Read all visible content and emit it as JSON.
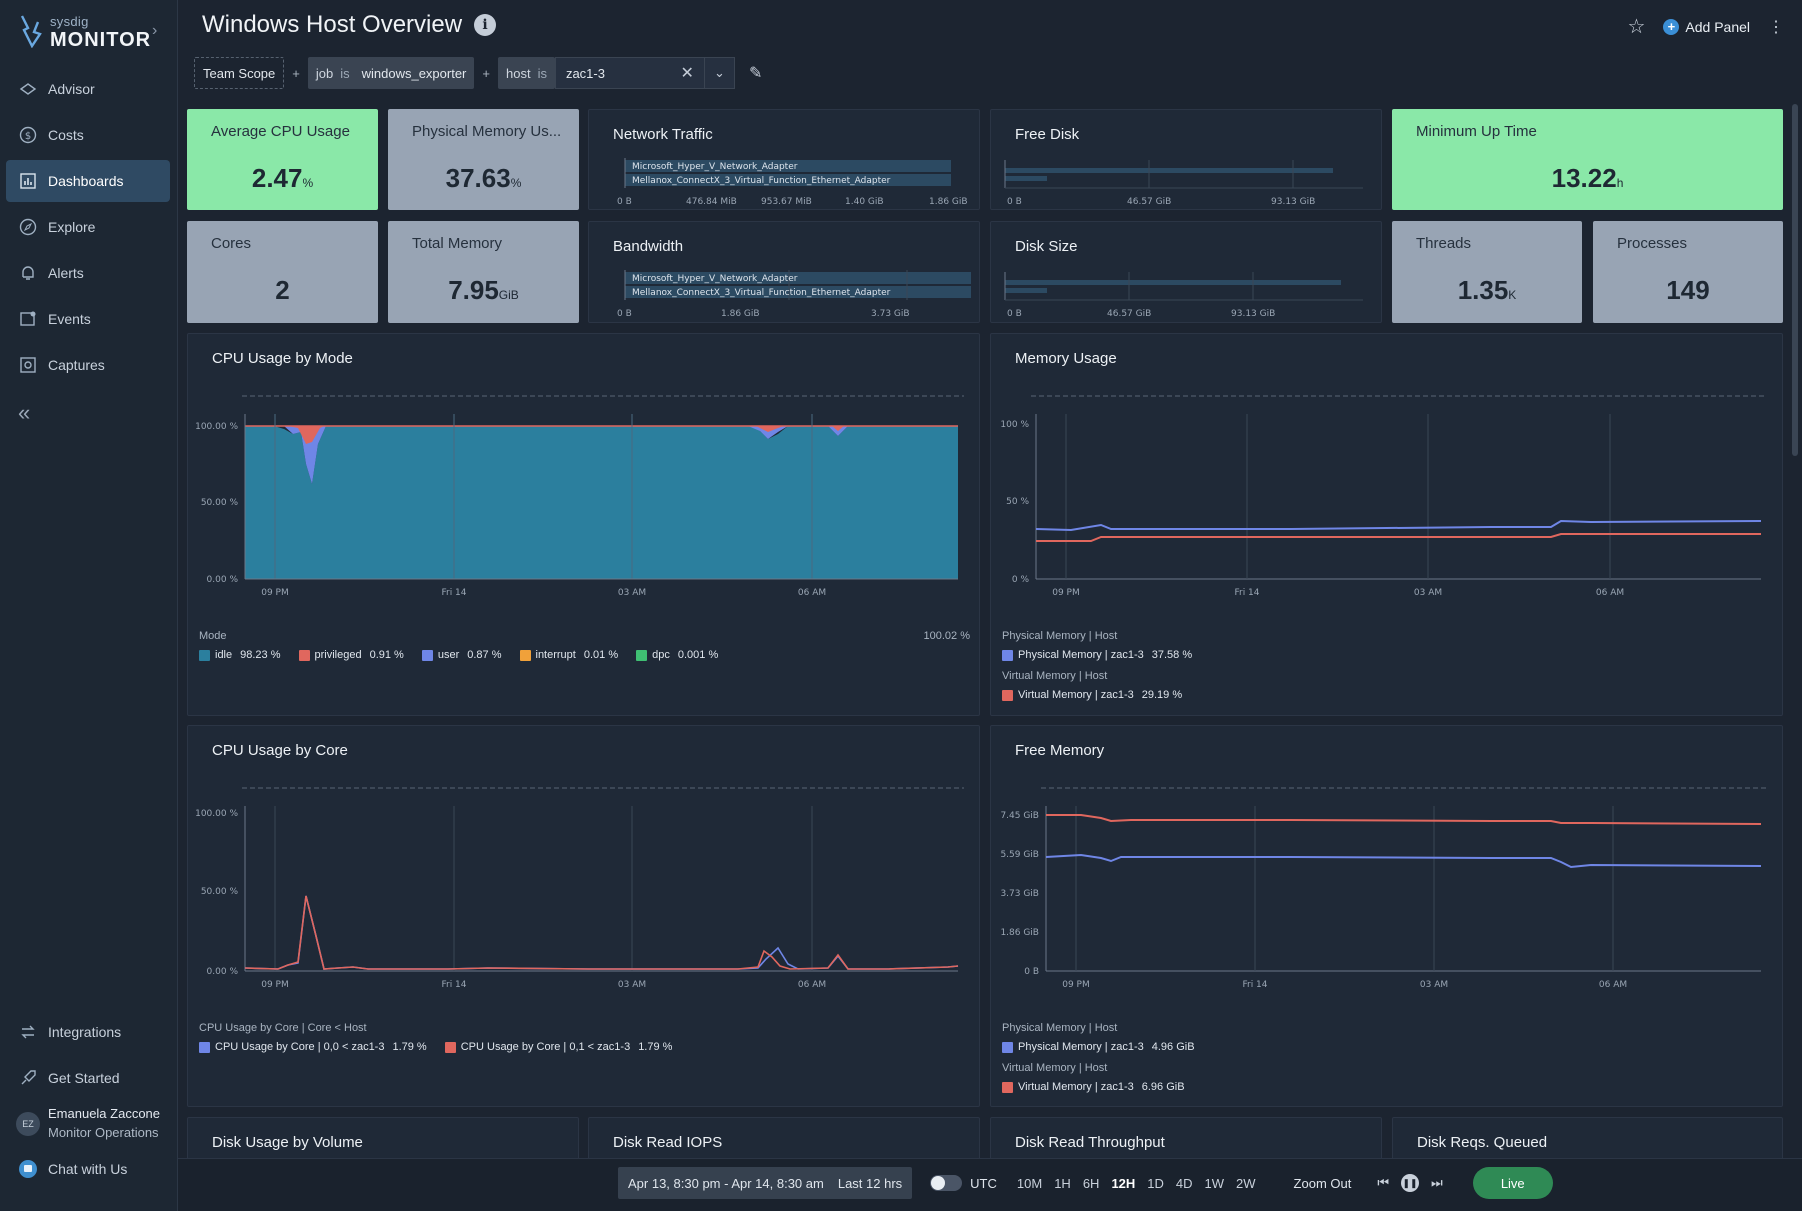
{
  "app": {
    "brand_small": "sysdig",
    "brand_big": "MONITOR"
  },
  "sidebar": {
    "items": [
      {
        "label": "Advisor",
        "icon": "advisor-icon"
      },
      {
        "label": "Costs",
        "icon": "costs-icon"
      },
      {
        "label": "Dashboards",
        "icon": "dashboards-icon",
        "active": true
      },
      {
        "label": "Explore",
        "icon": "explore-icon"
      },
      {
        "label": "Alerts",
        "icon": "alerts-icon"
      },
      {
        "label": "Events",
        "icon": "events-icon"
      },
      {
        "label": "Captures",
        "icon": "captures-icon"
      }
    ],
    "bottom_items": [
      {
        "label": "Integrations",
        "icon": "integrations-icon"
      },
      {
        "label": "Get Started",
        "icon": "get-started-icon"
      }
    ],
    "user": {
      "initials": "EZ",
      "name": "Emanuela Zaccone",
      "role": "Monitor Operations"
    },
    "chat": "Chat with Us"
  },
  "header": {
    "title": "Windows Host Overview",
    "add_panel": "Add Panel"
  },
  "filters": {
    "scope": "Team Scope",
    "plus": "+",
    "f1": {
      "key": "job",
      "op": "is",
      "value": "windows_exporter"
    },
    "f2": {
      "key": "host",
      "op": "is",
      "value": "zac1-3"
    }
  },
  "tiles": {
    "avg_cpu": {
      "label": "Average CPU Usage",
      "value": "2.47",
      "unit": "%"
    },
    "phys_mem": {
      "label": "Physical Memory Us...",
      "value": "37.63",
      "unit": "%"
    },
    "min_up": {
      "label": "Minimum Up Time",
      "value": "13.22",
      "unit": "h"
    },
    "cores": {
      "label": "Cores",
      "value": "2",
      "unit": ""
    },
    "total_mem": {
      "label": "Total Memory",
      "value": "7.95",
      "unit": "GiB"
    },
    "threads": {
      "label": "Threads",
      "value": "1.35",
      "unit": "K"
    },
    "processes": {
      "label": "Processes",
      "value": "149",
      "unit": ""
    }
  },
  "bar_panels": {
    "network": {
      "title": "Network Traffic",
      "bars": [
        "Microsoft_Hyper_V_Network_Adapter",
        "Mellanox_ConnectX_3_Virtual_Function_Ethernet_Adapter"
      ],
      "ticks": [
        "0 B",
        "476.84 MiB",
        "953.67 MiB",
        "1.40 GiB",
        "1.86 GiB"
      ]
    },
    "bandwidth": {
      "title": "Bandwidth",
      "bars": [
        "Microsoft_Hyper_V_Network_Adapter",
        "Mellanox_ConnectX_3_Virtual_Function_Ethernet_Adapter"
      ],
      "ticks": [
        "0 B",
        "1.86 GiB",
        "3.73 GiB"
      ]
    },
    "free_disk": {
      "title": "Free Disk",
      "ticks": [
        "0 B",
        "46.57 GiB",
        "93.13 GiB"
      ]
    },
    "disk_size": {
      "title": "Disk Size",
      "ticks": [
        "0 B",
        "46.57 GiB",
        "93.13 GiB"
      ]
    }
  },
  "charts": {
    "cpu_mode": {
      "title": "CPU Usage by Mode",
      "group": "Mode",
      "total": "100.02 %",
      "legend": [
        {
          "name": "idle",
          "value": "98.23 %",
          "color": "#2b7f9e"
        },
        {
          "name": "privileged",
          "value": "0.91 %",
          "color": "#e0675e"
        },
        {
          "name": "user",
          "value": "0.87 %",
          "color": "#6f86e6"
        },
        {
          "name": "interrupt",
          "value": "0.01 %",
          "color": "#f0a13a"
        },
        {
          "name": "dpc",
          "value": "0.001 %",
          "color": "#3fbf73"
        }
      ]
    },
    "memory_usage": {
      "title": "Memory Usage",
      "g1": "Physical Memory | Host",
      "l1": "Physical Memory | zac1-3",
      "v1": "37.58 %",
      "g2": "Virtual Memory | Host",
      "l2": "Virtual Memory | zac1-3",
      "v2": "29.19 %"
    },
    "cpu_core": {
      "title": "CPU Usage by Core",
      "group": "CPU Usage by Core | Core < Host",
      "l1": "CPU Usage by Core | 0,0 < zac1-3",
      "v1": "1.79 %",
      "l2": "CPU Usage by Core | 0,1 < zac1-3",
      "v2": "1.79 %"
    },
    "free_memory": {
      "title": "Free Memory",
      "g1": "Physical Memory | Host",
      "l1": "Physical Memory | zac1-3",
      "v1": "4.96 GiB",
      "g2": "Virtual Memory | Host",
      "l2": "Virtual Memory | zac1-3",
      "v2": "6.96 GiB"
    },
    "x_ticks": [
      "09 PM",
      "Fri 14",
      "03 AM",
      "06 AM"
    ],
    "pct_ticks": [
      "100.00 %",
      "50.00 %",
      "0.00 %"
    ],
    "mem_ticks": [
      "100 %",
      "50 %",
      "0 %"
    ],
    "gib_ticks": [
      "7.45 GiB",
      "5.59 GiB",
      "3.73 GiB",
      "1.86 GiB",
      "0 B"
    ]
  },
  "bottom_panels": [
    "Disk Usage by Volume",
    "Disk Read IOPS",
    "Disk Read Throughput",
    "Disk Reqs. Queued"
  ],
  "timebar": {
    "range": "Apr 13, 8:30 pm - Apr 14, 8:30 am",
    "last": "Last 12 hrs",
    "utc": "UTC",
    "ranges": [
      "10M",
      "1H",
      "6H",
      "12H",
      "1D",
      "4D",
      "1W",
      "2W"
    ],
    "selected": "12H",
    "zoom_out": "Zoom Out",
    "live": "Live"
  },
  "chart_data": [
    {
      "type": "area",
      "title": "CPU Usage by Mode",
      "x": [
        "09 PM",
        "Fri 14",
        "03 AM",
        "06 AM"
      ],
      "ylim": [
        0,
        100
      ],
      "yunit": "%",
      "series": [
        {
          "name": "idle",
          "values": [
            98.2,
            98.3,
            98.2,
            98.2
          ]
        },
        {
          "name": "privileged",
          "values": [
            0.9,
            0.9,
            0.9,
            0.9
          ]
        },
        {
          "name": "user",
          "values": [
            0.9,
            0.9,
            0.9,
            0.9
          ]
        }
      ]
    },
    {
      "type": "line",
      "title": "Memory Usage",
      "x": [
        "09 PM",
        "Fri 14",
        "03 AM",
        "06 AM"
      ],
      "ylim": [
        0,
        100
      ],
      "yunit": "%",
      "series": [
        {
          "name": "Physical Memory | zac1-3",
          "values": [
            32,
            33,
            33,
            37.6
          ]
        },
        {
          "name": "Virtual Memory | zac1-3",
          "values": [
            25,
            27,
            27,
            29.2
          ]
        }
      ]
    },
    {
      "type": "line",
      "title": "CPU Usage by Core",
      "x": [
        "09 PM",
        "Fri 14",
        "03 AM",
        "06 AM"
      ],
      "ylim": [
        0,
        100
      ],
      "yunit": "%",
      "series": [
        {
          "name": "CPU Usage by Core | 0,0 < zac1-3",
          "values": [
            1.8,
            1.8,
            1.8,
            1.8
          ]
        },
        {
          "name": "CPU Usage by Core | 0,1 < zac1-3",
          "values": [
            1.8,
            1.8,
            1.8,
            1.8
          ]
        }
      ]
    },
    {
      "type": "line",
      "title": "Free Memory",
      "x": [
        "09 PM",
        "Fri 14",
        "03 AM",
        "06 AM"
      ],
      "ylim": [
        0,
        7.45
      ],
      "yunit": "GiB",
      "series": [
        {
          "name": "Physical Memory | zac1-3",
          "values": [
            5.3,
            5.2,
            5.2,
            4.96
          ]
        },
        {
          "name": "Virtual Memory | zac1-3",
          "values": [
            7.3,
            7.2,
            7.2,
            6.96
          ]
        }
      ]
    }
  ]
}
